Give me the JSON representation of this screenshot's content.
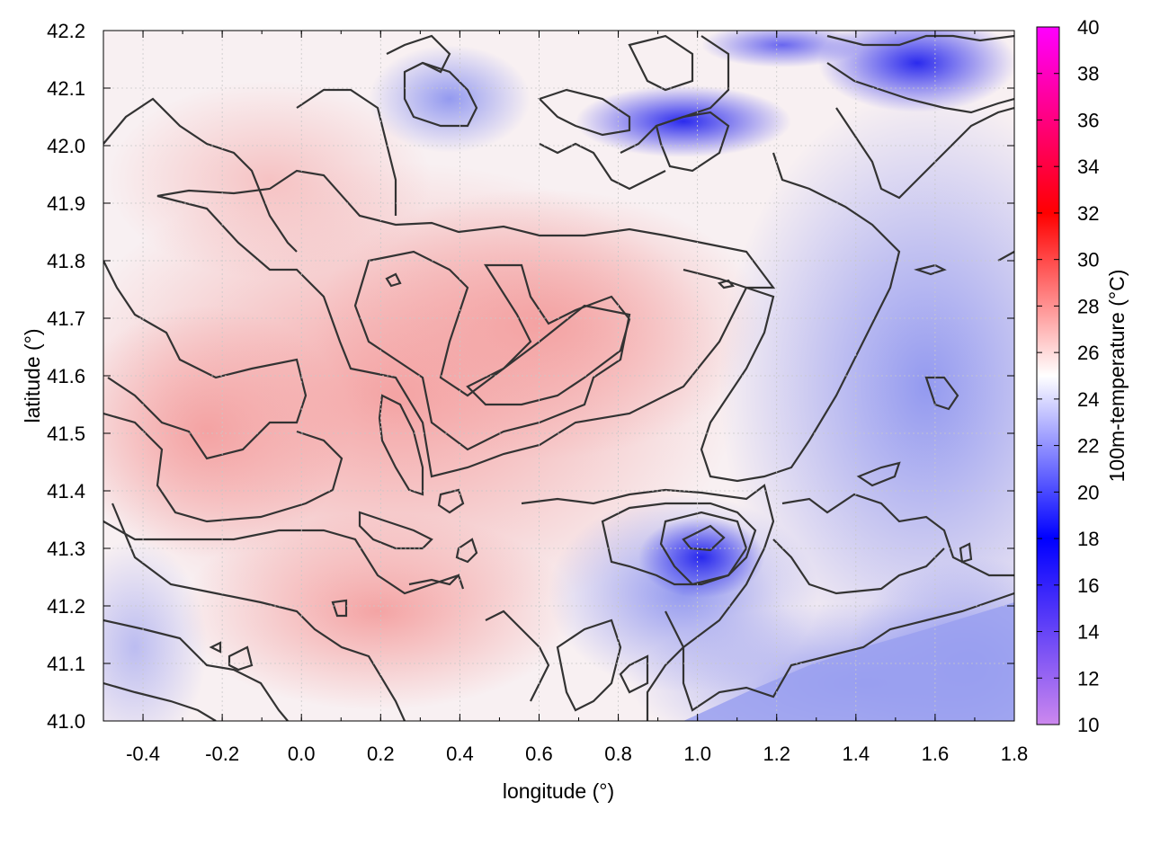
{
  "chart_data": {
    "type": "heatmap",
    "xlabel": "longitude (°)",
    "ylabel": "latitude (°)",
    "colorbar_label": "100m-temperature (°C)",
    "xlim": [
      -0.5,
      1.8
    ],
    "ylim": [
      41.0,
      42.2
    ],
    "x_ticks": [
      -0.4,
      -0.2,
      0.0,
      0.2,
      0.4,
      0.6,
      0.8,
      1.0,
      1.2,
      1.4,
      1.6,
      1.8
    ],
    "x_tick_labels": [
      "-0.4",
      "-0.2",
      "0.0",
      "0.2",
      "0.4",
      "0.6",
      "0.8",
      "1.0",
      "1.2",
      "1.4",
      "1.6",
      "1.8"
    ],
    "y_ticks": [
      41.0,
      41.1,
      41.2,
      41.3,
      41.4,
      41.5,
      41.6,
      41.7,
      41.8,
      41.9,
      42.0,
      42.1,
      42.2
    ],
    "y_tick_labels": [
      "41.0",
      "41.1",
      "41.2",
      "41.3",
      "41.4",
      "41.5",
      "41.6",
      "41.7",
      "41.8",
      "41.9",
      "42.0",
      "42.1",
      "42.2"
    ],
    "colorbar_range": [
      10,
      40
    ],
    "colorbar_ticks": [
      10,
      12,
      14,
      16,
      18,
      20,
      22,
      24,
      26,
      28,
      30,
      32,
      34,
      36,
      38,
      40
    ],
    "colorbar_tick_labels": [
      "10",
      "12",
      "14",
      "16",
      "18",
      "20",
      "22",
      "24",
      "26",
      "28",
      "30",
      "32",
      "34",
      "36",
      "38",
      "40"
    ],
    "colorscale": [
      {
        "value": 10,
        "color": "#cc88ee"
      },
      {
        "value": 18,
        "color": "#0000ff"
      },
      {
        "value": 25,
        "color": "#ffffff"
      },
      {
        "value": 32,
        "color": "#ff0000"
      },
      {
        "value": 40,
        "color": "#ff00ff"
      }
    ],
    "grid": true,
    "contour_color": "#333333",
    "field_samples": [
      {
        "lon": -0.3,
        "lat": 41.5,
        "temp": 26.5
      },
      {
        "lon": 0.1,
        "lat": 41.3,
        "temp": 27
      },
      {
        "lon": 0.5,
        "lat": 41.7,
        "temp": 27.5
      },
      {
        "lon": 0.7,
        "lat": 41.6,
        "temp": 27.5
      },
      {
        "lon": 0.3,
        "lat": 41.2,
        "temp": 27
      },
      {
        "lon": 0.9,
        "lat": 41.3,
        "temp": 20
      },
      {
        "lon": 1.0,
        "lat": 41.3,
        "temp": 19
      },
      {
        "lon": 1.5,
        "lat": 41.1,
        "temp": 21
      },
      {
        "lon": 1.6,
        "lat": 42.15,
        "temp": 16
      },
      {
        "lon": 0.8,
        "lat": 42.05,
        "temp": 19
      },
      {
        "lon": 1.4,
        "lat": 41.6,
        "temp": 23
      },
      {
        "lon": 1.2,
        "lat": 41.4,
        "temp": 22.5
      },
      {
        "lon": -0.2,
        "lat": 42.0,
        "temp": 25.5
      },
      {
        "lon": 0.0,
        "lat": 41.9,
        "temp": 26
      }
    ]
  }
}
